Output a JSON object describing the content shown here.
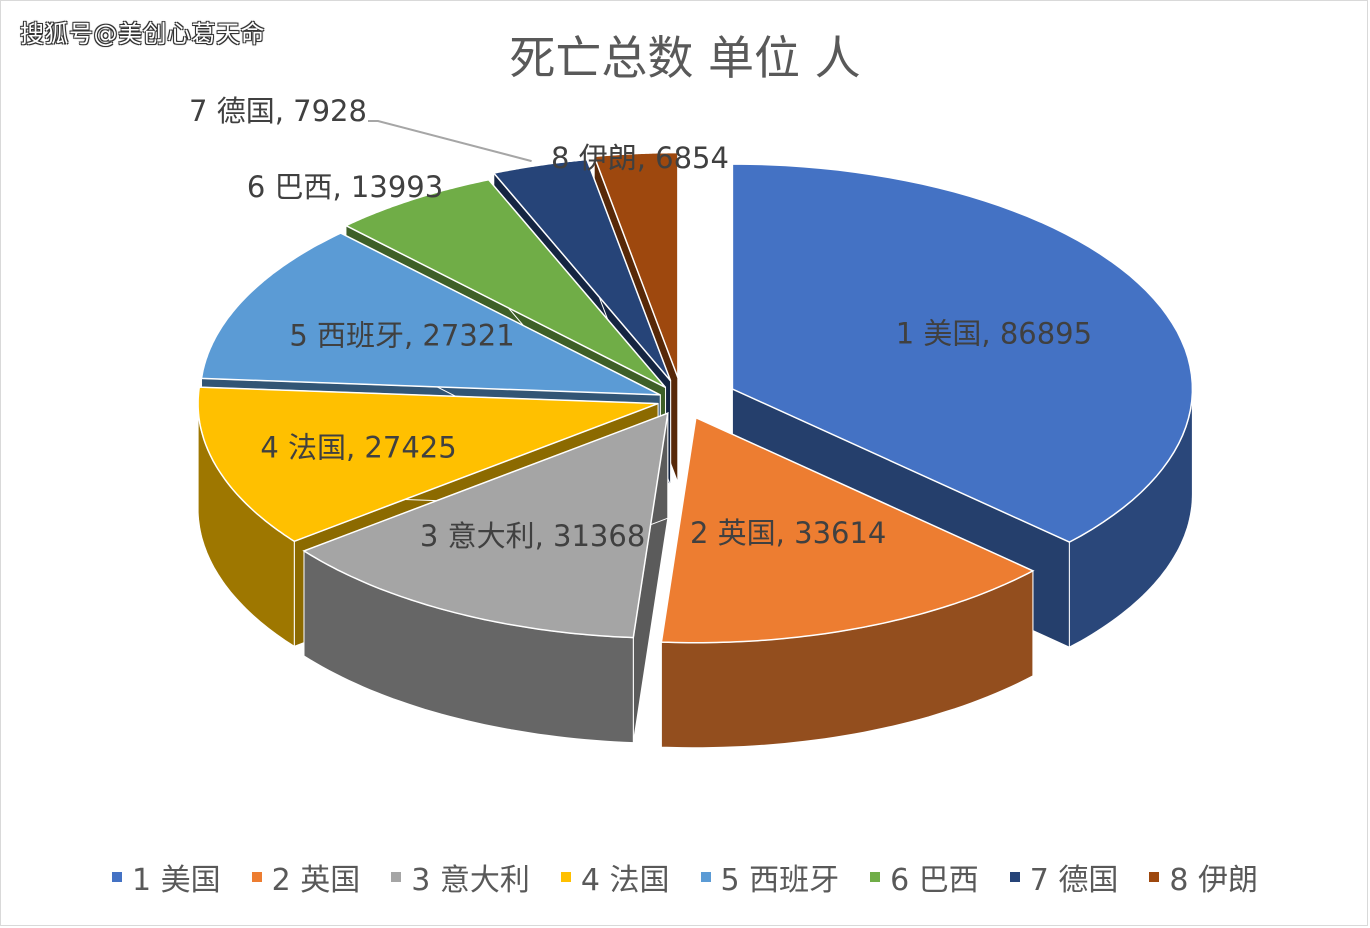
{
  "watermark": "搜狐号@美创心葛天命",
  "chart_data": {
    "type": "pie",
    "title": "死亡总数 单位 人",
    "categories": [
      "1 美国",
      "2 英国",
      "3 意大利",
      "4 法国",
      "5 西班牙",
      "6 巴西",
      "7 德国",
      "8 伊朗"
    ],
    "values": [
      86895,
      33614,
      31368,
      27425,
      27321,
      13993,
      7928,
      6854
    ],
    "data_labels": [
      "1 美国, 86895",
      "2 英国, 33614",
      "3 意大利, 31368",
      "4 法国, 27425",
      "5 西班牙, 27321",
      "6 巴西, 13993",
      "7 德国, 7928",
      "8 伊朗, 6854"
    ],
    "colors": [
      "#4472c4",
      "#ed7d31",
      "#a5a5a5",
      "#ffc000",
      "#5b9bd5",
      "#70ad47",
      "#264478",
      "#9e480e"
    ],
    "style": "3d-exploded",
    "legend": "bottom"
  }
}
